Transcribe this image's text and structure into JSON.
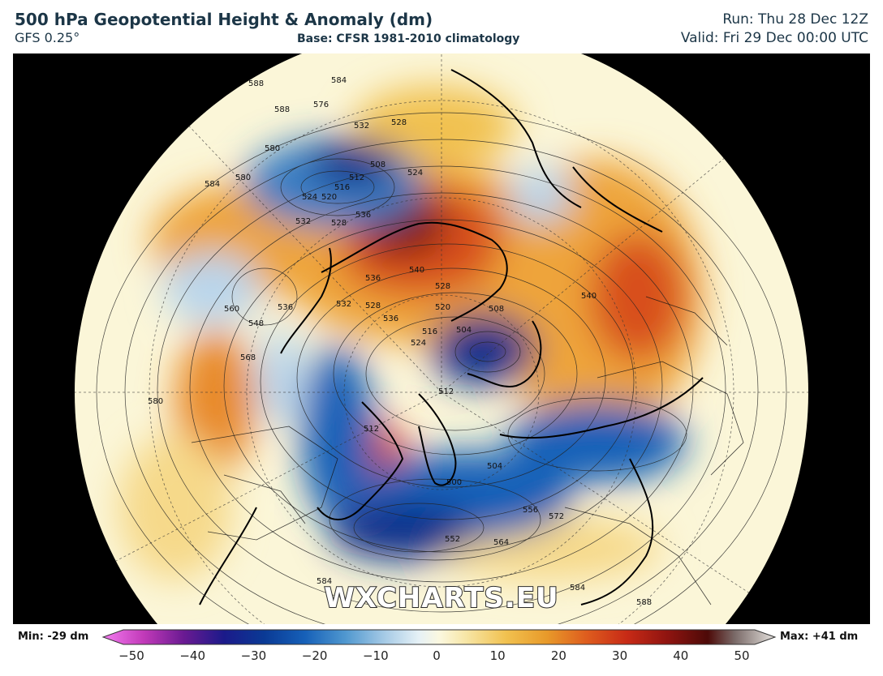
{
  "header": {
    "title": "500 hPa Geopotential Height & Anomaly (dm)",
    "model": "GFS 0.25°",
    "base": "Base: CFSR 1981-2010 climatology",
    "run": "Run: Thu 28 Dec 12Z",
    "valid": "Valid: Fri 29 Dec 00:00 UTC"
  },
  "watermark": "WXCHARTS.EU",
  "colorbar": {
    "min_label": "Min: -29 dm",
    "max_label": "Max: +41 dm",
    "ticks": [
      "−50",
      "−40",
      "−30",
      "−20",
      "−10",
      "0",
      "10",
      "20",
      "30",
      "40",
      "50"
    ],
    "range": [
      -50,
      50
    ],
    "stops": [
      {
        "v": -50,
        "c": "#f47cf0"
      },
      {
        "v": -44,
        "c": "#c23ab9"
      },
      {
        "v": -38,
        "c": "#6a1a92"
      },
      {
        "v": -32,
        "c": "#1b1a8a"
      },
      {
        "v": -26,
        "c": "#0a3a95"
      },
      {
        "v": -20,
        "c": "#1660b8"
      },
      {
        "v": -14,
        "c": "#4f97cf"
      },
      {
        "v": -8,
        "c": "#a7cbe6"
      },
      {
        "v": -3,
        "c": "#e6f1f6"
      },
      {
        "v": 0,
        "c": "#fbf8e0"
      },
      {
        "v": 4,
        "c": "#f7e6a6"
      },
      {
        "v": 10,
        "c": "#f1c14f"
      },
      {
        "v": 16,
        "c": "#e89a2a"
      },
      {
        "v": 22,
        "c": "#de5c1e"
      },
      {
        "v": 28,
        "c": "#c72a16"
      },
      {
        "v": 34,
        "c": "#8f1410"
      },
      {
        "v": 40,
        "c": "#4d0a08"
      },
      {
        "v": 44,
        "c": "#7a6a68"
      },
      {
        "v": 50,
        "c": "#e5e2de"
      }
    ]
  },
  "map_colors": {
    "background": "#000000",
    "neutral": "#fbf6d8",
    "warm_light": "#f6d98a",
    "warm": "#eea43a",
    "warm_strong": "#d8501b",
    "warm_max": "#7a1208",
    "cold_light": "#b9d6ec",
    "cold": "#3a7fc4",
    "cold_max": "#0b2f8a",
    "contour": "#222222",
    "coast": "#000000"
  },
  "contour_labels": [
    "588",
    "584",
    "576",
    "588",
    "532",
    "528",
    "580",
    "516",
    "512",
    "508",
    "524",
    "584",
    "580",
    "524",
    "520",
    "532",
    "528",
    "536",
    "540",
    "536",
    "528",
    "528",
    "560",
    "548",
    "536",
    "540",
    "532",
    "520",
    "508",
    "504",
    "516",
    "524",
    "536",
    "568",
    "580",
    "512",
    "512",
    "504",
    "500",
    "552",
    "564",
    "556",
    "572",
    "584",
    "584",
    "588"
  ]
}
